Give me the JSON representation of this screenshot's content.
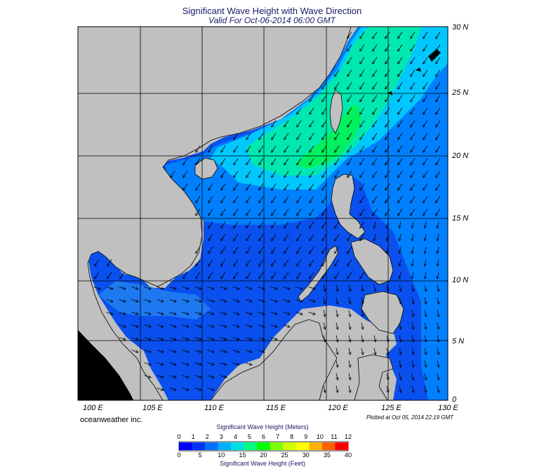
{
  "header": {
    "title": "Significant Wave Height with Wave Direction",
    "subtitle": "Valid For Oct-06-2014 06:00 GMT"
  },
  "map": {
    "lat_labels": [
      "30 N",
      "25 N",
      "20 N",
      "15 N",
      "10 N",
      "5 N",
      "0"
    ],
    "lon_labels": [
      "100 E",
      "105 E",
      "110 E",
      "115 E",
      "120 E",
      "125 E",
      "130 E"
    ],
    "lon_range": [
      100,
      130
    ],
    "lat_range": [
      0,
      30
    ],
    "colors": {
      "land": "#c0c0c0",
      "coast": "#000000",
      "grid": "#000000"
    }
  },
  "footer": {
    "brand": "oceanweather inc.",
    "plotted": "Plotted at Oct 05, 2014 22:19 GMT"
  },
  "colorbar": {
    "title_top": "Significant Wave Height (Meters)",
    "title_bottom": "Significant Wave Height (Feet)",
    "meters_ticks": [
      "0",
      "1",
      "2",
      "3",
      "4",
      "5",
      "6",
      "7",
      "8",
      "9",
      "10",
      "11",
      "12"
    ],
    "feet_ticks": [
      "0",
      "5",
      "10",
      "15",
      "20",
      "25",
      "30",
      "35",
      "40"
    ],
    "colors": [
      "#0000ff",
      "#0030ff",
      "#0070ff",
      "#00b0ff",
      "#00e0e0",
      "#00ff80",
      "#00ff00",
      "#80ff00",
      "#d0ff00",
      "#ffff00",
      "#ffb000",
      "#ff6000",
      "#ff0000"
    ]
  }
}
